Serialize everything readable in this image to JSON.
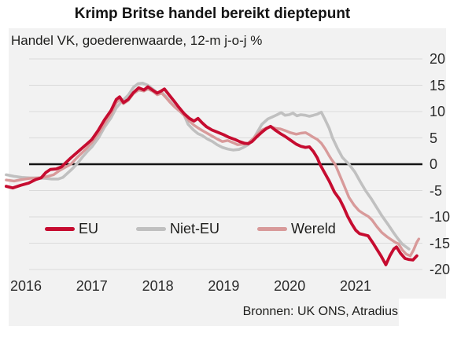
{
  "title": "Krimp Britse handel bereikt dieptepunt",
  "panel": {
    "subtitle": "Handel VK, goederenwaarde, 12-m j-o-j %",
    "source": "Bronnen: UK ONS, Atradius"
  },
  "colors": {
    "eu_red": "#c60c30",
    "niet_eu_gray": "#c0c0c0",
    "wereld_salmon": "#d89a9a",
    "panel_bg": "#f2f2f2",
    "gridline": "#dadada",
    "zero_line": "#141414",
    "axis_text": "#2b2b2b"
  },
  "chart_data": {
    "type": "line",
    "title": "Krimp Britse handel bereikt dieptepunt",
    "subtitle": "Handel VK, goederenwaarde, 12-m j-o-j %",
    "ylabel": "12-m j-o-j %",
    "ylim": [
      -20,
      20
    ],
    "y_ticks": [
      20,
      15,
      10,
      5,
      0,
      -5,
      -10,
      -15,
      -20
    ],
    "x_ticks": [
      2016,
      2017,
      2018,
      2019,
      2020,
      2021
    ],
    "grid": true,
    "legend_position": "inside-bottom-left",
    "source": "Bronnen: UK ONS, Atradius",
    "series": [
      {
        "name": "Niet-EU",
        "color": "#c0c0c0",
        "points": [
          [
            2015.7,
            -2.0
          ],
          [
            2015.82,
            -2.3
          ],
          [
            2015.94,
            -2.5
          ],
          [
            2016.06,
            -2.6
          ],
          [
            2016.18,
            -2.6
          ],
          [
            2016.3,
            -2.7
          ],
          [
            2016.39,
            -2.8
          ],
          [
            2016.49,
            -2.8
          ],
          [
            2016.56,
            -2.5
          ],
          [
            2016.63,
            -1.7
          ],
          [
            2016.7,
            -0.9
          ],
          [
            2016.77,
            0.0
          ],
          [
            2016.86,
            1.4
          ],
          [
            2016.93,
            2.4
          ],
          [
            2017.0,
            3.3
          ],
          [
            2017.1,
            5.0
          ],
          [
            2017.19,
            7.0
          ],
          [
            2017.29,
            8.8
          ],
          [
            2017.37,
            10.7
          ],
          [
            2017.45,
            11.9
          ],
          [
            2017.55,
            13.1
          ],
          [
            2017.63,
            14.6
          ],
          [
            2017.7,
            15.3
          ],
          [
            2017.77,
            15.4
          ],
          [
            2017.85,
            15.0
          ],
          [
            2017.92,
            14.3
          ],
          [
            2017.99,
            13.6
          ],
          [
            2018.06,
            13.7
          ],
          [
            2018.12,
            12.9
          ],
          [
            2018.19,
            11.9
          ],
          [
            2018.26,
            10.9
          ],
          [
            2018.33,
            10.1
          ],
          [
            2018.4,
            9.3
          ],
          [
            2018.46,
            7.6
          ],
          [
            2018.54,
            6.5
          ],
          [
            2018.61,
            5.8
          ],
          [
            2018.68,
            5.4
          ],
          [
            2018.75,
            4.8
          ],
          [
            2018.83,
            4.3
          ],
          [
            2018.9,
            3.7
          ],
          [
            2018.98,
            3.2
          ],
          [
            2019.06,
            2.9
          ],
          [
            2019.14,
            2.7
          ],
          [
            2019.23,
            2.8
          ],
          [
            2019.3,
            3.2
          ],
          [
            2019.37,
            3.7
          ],
          [
            2019.44,
            4.6
          ],
          [
            2019.51,
            6.1
          ],
          [
            2019.58,
            7.6
          ],
          [
            2019.67,
            8.6
          ],
          [
            2019.74,
            9.0
          ],
          [
            2019.81,
            9.4
          ],
          [
            2019.87,
            9.8
          ],
          [
            2019.93,
            9.3
          ],
          [
            2019.99,
            9.4
          ],
          [
            2020.05,
            9.7
          ],
          [
            2020.11,
            9.2
          ],
          [
            2020.17,
            9.4
          ],
          [
            2020.24,
            9.3
          ],
          [
            2020.3,
            9.1
          ],
          [
            2020.36,
            9.3
          ],
          [
            2020.42,
            9.5
          ],
          [
            2020.48,
            9.9
          ],
          [
            2020.54,
            8.4
          ],
          [
            2020.6,
            6.8
          ],
          [
            2020.65,
            5.0
          ],
          [
            2020.73,
            2.9
          ],
          [
            2020.8,
            1.3
          ],
          [
            2020.86,
            0.5
          ],
          [
            2020.9,
            0.0
          ],
          [
            2020.99,
            -1.5
          ],
          [
            2021.07,
            -3.3
          ],
          [
            2021.15,
            -5.0
          ],
          [
            2021.24,
            -6.6
          ],
          [
            2021.32,
            -8.2
          ],
          [
            2021.4,
            -9.8
          ],
          [
            2021.49,
            -11.4
          ],
          [
            2021.57,
            -12.9
          ],
          [
            2021.64,
            -14.1
          ],
          [
            2021.71,
            -15.2
          ],
          [
            2021.81,
            -16.1
          ]
        ]
      },
      {
        "name": "Wereld",
        "color": "#d89a9a",
        "points": [
          [
            2015.7,
            -3.0
          ],
          [
            2015.82,
            -3.2
          ],
          [
            2015.94,
            -2.9
          ],
          [
            2016.06,
            -2.7
          ],
          [
            2016.18,
            -2.6
          ],
          [
            2016.3,
            -2.4
          ],
          [
            2016.42,
            -2.0
          ],
          [
            2016.51,
            -1.2
          ],
          [
            2016.61,
            -0.5
          ],
          [
            2016.68,
            0.0
          ],
          [
            2016.77,
            1.2
          ],
          [
            2016.87,
            2.4
          ],
          [
            2016.94,
            3.3
          ],
          [
            2017.0,
            4.1
          ],
          [
            2017.1,
            5.8
          ],
          [
            2017.19,
            7.6
          ],
          [
            2017.29,
            9.5
          ],
          [
            2017.37,
            11.7
          ],
          [
            2017.42,
            12.3
          ],
          [
            2017.48,
            11.5
          ],
          [
            2017.55,
            12.1
          ],
          [
            2017.63,
            13.4
          ],
          [
            2017.71,
            14.1
          ],
          [
            2017.79,
            13.9
          ],
          [
            2017.85,
            14.3
          ],
          [
            2017.93,
            13.8
          ],
          [
            2017.99,
            13.2
          ],
          [
            2018.06,
            13.5
          ],
          [
            2018.12,
            12.7
          ],
          [
            2018.19,
            11.7
          ],
          [
            2018.26,
            10.8
          ],
          [
            2018.33,
            10.1
          ],
          [
            2018.4,
            9.3
          ],
          [
            2018.48,
            8.2
          ],
          [
            2018.55,
            7.4
          ],
          [
            2018.62,
            6.8
          ],
          [
            2018.69,
            6.3
          ],
          [
            2018.76,
            5.8
          ],
          [
            2018.83,
            5.3
          ],
          [
            2018.9,
            4.8
          ],
          [
            2018.98,
            4.3
          ],
          [
            2019.06,
            4.5
          ],
          [
            2019.14,
            4.1
          ],
          [
            2019.21,
            3.7
          ],
          [
            2019.3,
            3.8
          ],
          [
            2019.37,
            4.0
          ],
          [
            2019.44,
            4.8
          ],
          [
            2019.51,
            5.7
          ],
          [
            2019.58,
            6.5
          ],
          [
            2019.65,
            6.9
          ],
          [
            2019.71,
            7.1
          ],
          [
            2019.79,
            6.8
          ],
          [
            2019.86,
            6.7
          ],
          [
            2019.93,
            6.4
          ],
          [
            2020.01,
            6.0
          ],
          [
            2020.1,
            5.7
          ],
          [
            2020.17,
            5.9
          ],
          [
            2020.24,
            6.0
          ],
          [
            2020.3,
            5.6
          ],
          [
            2020.36,
            5.1
          ],
          [
            2020.42,
            4.7
          ],
          [
            2020.48,
            4.0
          ],
          [
            2020.54,
            2.9
          ],
          [
            2020.6,
            1.6
          ],
          [
            2020.64,
            0.8
          ],
          [
            2020.69,
            0.0
          ],
          [
            2020.76,
            -2.1
          ],
          [
            2020.83,
            -4.2
          ],
          [
            2020.9,
            -6.3
          ],
          [
            2020.98,
            -7.8
          ],
          [
            2021.05,
            -8.8
          ],
          [
            2021.12,
            -9.4
          ],
          [
            2021.19,
            -9.9
          ],
          [
            2021.25,
            -10.6
          ],
          [
            2021.32,
            -11.8
          ],
          [
            2021.4,
            -13.0
          ],
          [
            2021.48,
            -13.8
          ],
          [
            2021.55,
            -14.4
          ],
          [
            2021.61,
            -14.9
          ],
          [
            2021.65,
            -15.1
          ],
          [
            2021.71,
            -16.3
          ],
          [
            2021.77,
            -17.1
          ],
          [
            2021.83,
            -17.4
          ],
          [
            2021.88,
            -16.3
          ],
          [
            2021.93,
            -14.8
          ],
          [
            2021.96,
            -14.2
          ]
        ]
      },
      {
        "name": "EU",
        "color": "#c60c30",
        "points": [
          [
            2015.7,
            -4.2
          ],
          [
            2015.8,
            -4.5
          ],
          [
            2015.92,
            -4.0
          ],
          [
            2016.04,
            -3.6
          ],
          [
            2016.15,
            -2.9
          ],
          [
            2016.23,
            -2.6
          ],
          [
            2016.3,
            -1.6
          ],
          [
            2016.37,
            -1.0
          ],
          [
            2016.46,
            -0.9
          ],
          [
            2016.54,
            -0.5
          ],
          [
            2016.58,
            0.0
          ],
          [
            2016.68,
            1.2
          ],
          [
            2016.8,
            2.5
          ],
          [
            2016.92,
            3.8
          ],
          [
            2017.0,
            4.7
          ],
          [
            2017.1,
            6.5
          ],
          [
            2017.19,
            8.4
          ],
          [
            2017.29,
            10.2
          ],
          [
            2017.37,
            12.3
          ],
          [
            2017.42,
            12.8
          ],
          [
            2017.48,
            11.7
          ],
          [
            2017.55,
            12.3
          ],
          [
            2017.63,
            13.6
          ],
          [
            2017.71,
            14.5
          ],
          [
            2017.79,
            14.1
          ],
          [
            2017.85,
            14.7
          ],
          [
            2017.93,
            14.0
          ],
          [
            2017.99,
            13.5
          ],
          [
            2018.05,
            13.9
          ],
          [
            2018.1,
            14.3
          ],
          [
            2018.17,
            13.2
          ],
          [
            2018.24,
            12.1
          ],
          [
            2018.32,
            10.8
          ],
          [
            2018.4,
            9.6
          ],
          [
            2018.48,
            8.7
          ],
          [
            2018.55,
            8.2
          ],
          [
            2018.61,
            8.7
          ],
          [
            2018.67,
            7.9
          ],
          [
            2018.74,
            7.1
          ],
          [
            2018.82,
            6.5
          ],
          [
            2018.92,
            6.0
          ],
          [
            2019.0,
            5.6
          ],
          [
            2019.08,
            5.1
          ],
          [
            2019.17,
            4.7
          ],
          [
            2019.24,
            4.3
          ],
          [
            2019.31,
            4.0
          ],
          [
            2019.37,
            3.9
          ],
          [
            2019.43,
            4.3
          ],
          [
            2019.5,
            5.2
          ],
          [
            2019.58,
            6.1
          ],
          [
            2019.65,
            6.8
          ],
          [
            2019.71,
            7.2
          ],
          [
            2019.79,
            6.4
          ],
          [
            2019.86,
            5.8
          ],
          [
            2019.93,
            5.3
          ],
          [
            2020.01,
            4.6
          ],
          [
            2020.1,
            3.8
          ],
          [
            2020.17,
            3.4
          ],
          [
            2020.24,
            3.2
          ],
          [
            2020.3,
            3.3
          ],
          [
            2020.36,
            2.4
          ],
          [
            2020.42,
            1.2
          ],
          [
            2020.46,
            0.0
          ],
          [
            2020.52,
            -1.4
          ],
          [
            2020.6,
            -3.2
          ],
          [
            2020.68,
            -5.3
          ],
          [
            2020.76,
            -6.7
          ],
          [
            2020.82,
            -8.2
          ],
          [
            2020.88,
            -9.9
          ],
          [
            2020.94,
            -11.3
          ],
          [
            2021.0,
            -12.5
          ],
          [
            2021.06,
            -13.2
          ],
          [
            2021.13,
            -13.4
          ],
          [
            2021.19,
            -13.6
          ],
          [
            2021.26,
            -14.9
          ],
          [
            2021.33,
            -16.3
          ],
          [
            2021.39,
            -17.5
          ],
          [
            2021.46,
            -19.1
          ],
          [
            2021.52,
            -17.4
          ],
          [
            2021.58,
            -16.1
          ],
          [
            2021.62,
            -15.7
          ],
          [
            2021.68,
            -16.9
          ],
          [
            2021.75,
            -17.9
          ],
          [
            2021.81,
            -18.1
          ],
          [
            2021.87,
            -18.2
          ],
          [
            2021.93,
            -17.4
          ]
        ]
      }
    ]
  }
}
